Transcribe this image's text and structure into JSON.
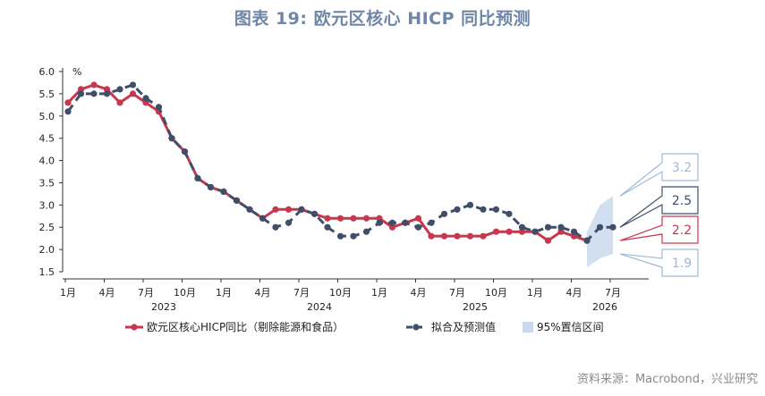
{
  "title": "图表 19: 欧元区核心 HICP 同比预测",
  "source": "资料来源：Macrobond，兴业研究",
  "chart_data": {
    "type": "line",
    "unit": "%",
    "ylim": [
      1.5,
      6.0
    ],
    "yticks": [
      "6.0",
      "5.5",
      "5.0",
      "4.5",
      "4.0",
      "3.5",
      "3.0",
      "2.5",
      "2.0",
      "1.5"
    ],
    "x_tick_labels": [
      "1月",
      "4月",
      "7月",
      "10月",
      "1月",
      "4月",
      "7月",
      "10月",
      "1月",
      "4月",
      "7月",
      "10月",
      "1月",
      "4月",
      "7月"
    ],
    "x_tick_index": [
      0,
      3,
      6,
      9,
      12,
      15,
      18,
      21,
      24,
      27,
      30,
      33,
      36,
      39,
      42
    ],
    "year_labels": [
      {
        "label": "2023",
        "index": 6
      },
      {
        "label": "2024",
        "index": 18
      },
      {
        "label": "2025",
        "index": 30
      },
      {
        "label": "2026",
        "index": 40
      }
    ],
    "series": [
      {
        "name": "欧元区核心HICP同比（剔除能源和食品）",
        "color": "#c8374f",
        "style": "solid",
        "start_index": 0,
        "values": [
          5.3,
          5.6,
          5.7,
          5.6,
          5.3,
          5.5,
          5.3,
          5.1,
          4.5,
          4.2,
          3.6,
          3.4,
          3.3,
          3.1,
          2.9,
          2.7,
          2.9,
          2.9,
          2.9,
          2.8,
          2.7,
          2.7,
          2.7,
          2.7,
          2.7,
          2.5,
          2.6,
          2.7,
          2.3,
          2.3,
          2.3,
          2.3,
          2.3,
          2.4,
          2.4,
          2.4,
          2.4,
          2.2,
          2.4,
          2.3,
          2.2
        ]
      },
      {
        "name": "拟合及预测值",
        "color": "#3f4f69",
        "style": "dashed",
        "start_index": 0,
        "values": [
          5.1,
          5.5,
          5.5,
          5.5,
          5.6,
          5.7,
          5.4,
          5.2,
          4.5,
          4.2,
          3.6,
          3.4,
          3.3,
          3.1,
          2.9,
          2.7,
          2.5,
          2.6,
          2.9,
          2.8,
          2.5,
          2.3,
          2.3,
          2.4,
          2.6,
          2.6,
          2.6,
          2.5,
          2.6,
          2.8,
          2.9,
          3.0,
          2.9,
          2.9,
          2.8,
          2.5,
          2.4,
          2.5,
          2.5,
          2.4,
          2.2,
          2.5,
          2.5
        ]
      }
    ],
    "confidence_band": {
      "name": "95%置信区间",
      "color": "#c9d9ef",
      "from_index": 40,
      "to_index": 42,
      "upper": [
        2.4,
        3.0,
        3.2
      ],
      "lower": [
        1.6,
        1.8,
        1.9
      ]
    },
    "callouts": [
      {
        "label": "3.2",
        "value": 3.2,
        "border": "#9fb9dc",
        "text_color": "#9fb9dc"
      },
      {
        "label": "2.5",
        "value": 2.5,
        "border": "#3f4f69",
        "text_color": "#3f4f69"
      },
      {
        "label": "2.2",
        "value": 2.2,
        "border": "#c8374f",
        "text_color": "#c8374f"
      },
      {
        "label": "1.9",
        "value": 1.9,
        "border": "#9fb9dc",
        "text_color": "#9fb9dc"
      }
    ],
    "legend": [
      "欧元区核心HICP同比（剔除能源和食品）",
      "拟合及预测值",
      "95%置信区间"
    ],
    "legend_position": "bottom"
  }
}
